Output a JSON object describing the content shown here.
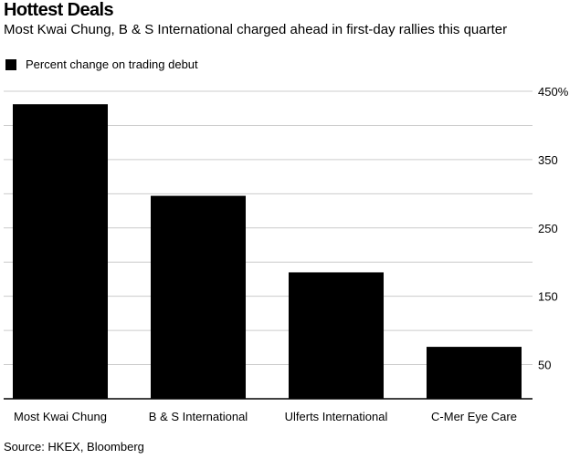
{
  "header": {
    "title": "Hottest Deals",
    "subtitle": "Most Kwai Chung, B & S International charged ahead in first-day rallies this quarter"
  },
  "footer": {
    "source": "Source: HKEX, Bloomberg"
  },
  "chart_data": {
    "type": "bar",
    "categories": [
      "Most Kwai Chung",
      "B & S International",
      "Ulferts International",
      "C-Mer Eye Care"
    ],
    "series": [
      {
        "name": "Percent change on trading debut",
        "values": [
          431,
          297,
          185,
          76
        ]
      }
    ],
    "ylim": [
      0,
      450
    ],
    "yticks": [
      50,
      150,
      250,
      350,
      450
    ],
    "ytick_labels": [
      "50",
      "150",
      "250",
      "350",
      "450%"
    ],
    "grid": true,
    "legend": "top-left",
    "colors": {
      "bar": "#000000",
      "grid": "#cccccc",
      "axis": "#000000"
    }
  }
}
